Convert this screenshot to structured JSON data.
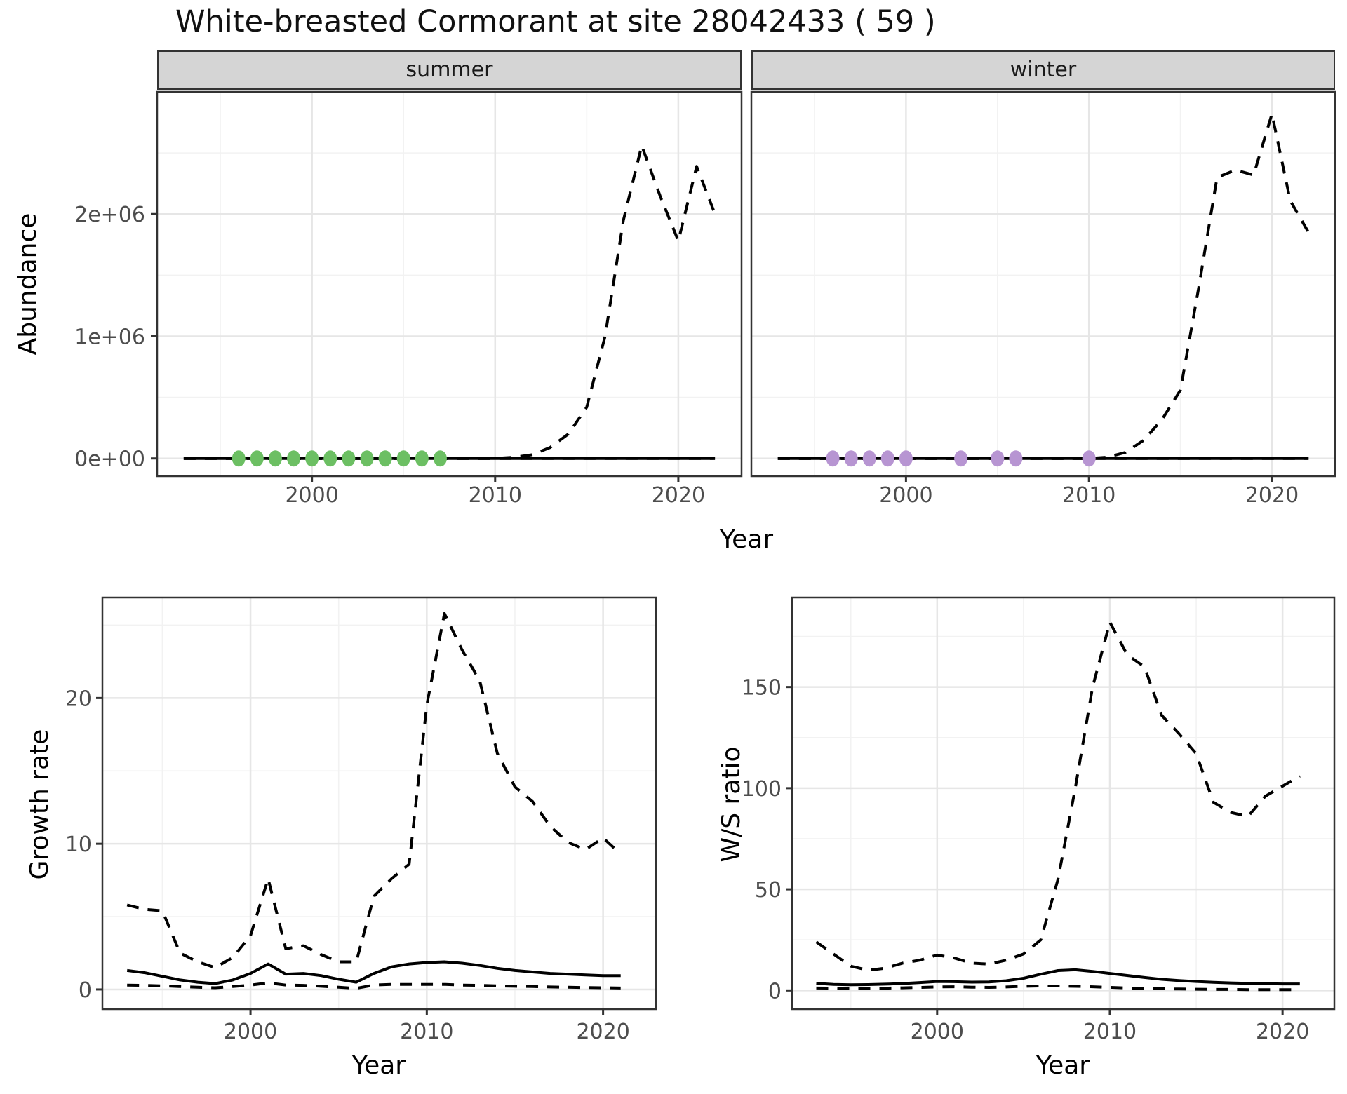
{
  "page": {
    "title": "White-breasted Cormorant at site 28042433 ( 59 )"
  },
  "colors": {
    "line": "#000000",
    "summer_points": "#6CBF63",
    "winter_points": "#B795D2",
    "grid_major": "#E6E6E6",
    "grid_minor": "#F2F2F2",
    "panel_border": "#333333",
    "strip_bg": "#D5D5D5",
    "tick_label": "#4D4D4D"
  },
  "chart_data": [
    {
      "id": "abundance_summer",
      "type": "line",
      "facet_label": "summer",
      "xlabel": "Year",
      "ylabel": "Abundance",
      "xlim": [
        1991.55,
        2023.45
      ],
      "ylim": [
        -145000,
        3000000
      ],
      "grid": true,
      "legend_position": "none",
      "xticks": {
        "values": [
          2000,
          2010,
          2020
        ],
        "labels": [
          "2000",
          "2010",
          "2020"
        ]
      },
      "xminor": [
        1995,
        2005,
        2015
      ],
      "yticks": {
        "values": [
          0,
          1000000,
          2000000
        ],
        "labels": [
          "0e+00",
          "1e+06",
          "2e+06"
        ]
      },
      "yminor": [
        500000,
        1500000,
        2500000
      ],
      "series": [
        {
          "name": "upper_ci",
          "style": "dashed",
          "color": "#000000",
          "x": [
            1993,
            2000,
            2005,
            2010,
            2011,
            2012,
            2013,
            2014,
            2015,
            2016,
            2017,
            2018,
            2019,
            2020,
            2021,
            2022
          ],
          "y": [
            0,
            0,
            0,
            0,
            10000,
            30000,
            90000,
            200000,
            420000,
            1000000,
            1950000,
            2560000,
            2150000,
            1780000,
            2390000,
            2000000
          ]
        },
        {
          "name": "estimate",
          "style": "solid",
          "color": "#000000",
          "x": [
            1993,
            2022
          ],
          "y": [
            0,
            0
          ]
        },
        {
          "name": "lower_ci",
          "style": "dashed",
          "color": "#000000",
          "x": [
            1993,
            2022
          ],
          "y": [
            0,
            0
          ]
        },
        {
          "name": "summer_counts",
          "style": "points",
          "color": "#6CBF63",
          "x": [
            1996,
            1997,
            1998,
            1999,
            2000,
            2001,
            2002,
            2003,
            2004,
            2005,
            2006,
            2007
          ],
          "y": [
            0,
            0,
            0,
            0,
            0,
            0,
            0,
            0,
            0,
            0,
            0,
            0
          ]
        }
      ]
    },
    {
      "id": "abundance_winter",
      "type": "line",
      "facet_label": "winter",
      "xlabel": "Year",
      "ylabel": "Abundance",
      "xlim": [
        1991.55,
        2023.45
      ],
      "ylim": [
        -145000,
        3000000
      ],
      "grid": true,
      "legend_position": "none",
      "xticks": {
        "values": [
          2000,
          2010,
          2020
        ],
        "labels": [
          "2000",
          "2010",
          "2020"
        ]
      },
      "xminor": [
        1995,
        2005,
        2015
      ],
      "yticks": {
        "values": [
          0,
          1000000,
          2000000
        ],
        "labels": [
          "",
          "",
          ""
        ]
      },
      "yminor": [
        500000,
        1500000,
        2500000
      ],
      "series": [
        {
          "name": "upper_ci",
          "style": "dashed",
          "color": "#000000",
          "x": [
            1993,
            2000,
            2005,
            2010,
            2011,
            2012,
            2013,
            2014,
            2015,
            2016,
            2017,
            2018,
            2019,
            2020,
            2021,
            2022
          ],
          "y": [
            0,
            0,
            0,
            0,
            10000,
            50000,
            150000,
            320000,
            560000,
            1400000,
            2300000,
            2360000,
            2320000,
            2820000,
            2110000,
            1850000
          ]
        },
        {
          "name": "estimate",
          "style": "solid",
          "color": "#000000",
          "x": [
            1993,
            2022
          ],
          "y": [
            0,
            0
          ]
        },
        {
          "name": "lower_ci",
          "style": "dashed",
          "color": "#000000",
          "x": [
            1993,
            2022
          ],
          "y": [
            0,
            0
          ]
        },
        {
          "name": "winter_counts",
          "style": "points",
          "color": "#B795D2",
          "x": [
            1996,
            1997,
            1998,
            1999,
            2000,
            2003,
            2005,
            2006,
            2010
          ],
          "y": [
            0,
            0,
            0,
            0,
            0,
            0,
            0,
            0,
            0
          ]
        }
      ]
    },
    {
      "id": "growth_rate",
      "type": "line",
      "facet_label": null,
      "xlabel": "Year",
      "ylabel": "Growth rate",
      "xlim": [
        1991.6,
        2023.0
      ],
      "ylim": [
        -1.35,
        26.9
      ],
      "grid": true,
      "legend_position": "none",
      "xticks": {
        "values": [
          2000,
          2010,
          2020
        ],
        "labels": [
          "2000",
          "2010",
          "2020"
        ]
      },
      "xminor": [
        1995,
        2005,
        2015
      ],
      "yticks": {
        "values": [
          0,
          10,
          20
        ],
        "labels": [
          "0",
          "10",
          "20"
        ]
      },
      "yminor": [
        5,
        15,
        25
      ],
      "series": [
        {
          "name": "upper_ci",
          "style": "dashed",
          "color": "#000000",
          "x": [
            1993,
            1994,
            1995,
            1996,
            1997,
            1998,
            1999,
            2000,
            2001,
            2002,
            2003,
            2004,
            2005,
            2006,
            2007,
            2008,
            2009,
            2010,
            2011,
            2012,
            2013,
            2014,
            2015,
            2016,
            2017,
            2018,
            2019,
            2020,
            2021
          ],
          "y": [
            5.8,
            5.5,
            5.4,
            2.5,
            1.9,
            1.5,
            2.2,
            3.7,
            7.6,
            2.8,
            3.0,
            2.4,
            1.9,
            1.9,
            6.4,
            7.6,
            8.6,
            19.5,
            25.8,
            23.3,
            21.2,
            16.2,
            13.9,
            12.9,
            11.2,
            10.1,
            9.6,
            10.4,
            9.3
          ]
        },
        {
          "name": "estimate",
          "style": "solid",
          "color": "#000000",
          "x": [
            1993,
            1994,
            1995,
            1996,
            1997,
            1998,
            1999,
            2000,
            2001,
            2002,
            2003,
            2004,
            2005,
            2006,
            2007,
            2008,
            2009,
            2010,
            2011,
            2012,
            2013,
            2014,
            2015,
            2016,
            2017,
            2018,
            2019,
            2020,
            2021
          ],
          "y": [
            1.3,
            1.15,
            0.9,
            0.65,
            0.5,
            0.4,
            0.65,
            1.1,
            1.75,
            1.05,
            1.1,
            0.95,
            0.7,
            0.5,
            1.1,
            1.55,
            1.75,
            1.85,
            1.9,
            1.8,
            1.65,
            1.45,
            1.3,
            1.2,
            1.1,
            1.05,
            1.0,
            0.95,
            0.95
          ]
        },
        {
          "name": "lower_ci",
          "style": "dashed",
          "color": "#000000",
          "x": [
            1993,
            1994,
            1995,
            1996,
            1997,
            1998,
            1999,
            2000,
            2001,
            2002,
            2003,
            2004,
            2005,
            2006,
            2007,
            2008,
            2009,
            2010,
            2011,
            2012,
            2013,
            2014,
            2015,
            2016,
            2017,
            2018,
            2019,
            2020,
            2021
          ],
          "y": [
            0.3,
            0.28,
            0.25,
            0.2,
            0.15,
            0.12,
            0.2,
            0.3,
            0.45,
            0.3,
            0.28,
            0.22,
            0.15,
            0.08,
            0.3,
            0.35,
            0.35,
            0.35,
            0.35,
            0.3,
            0.28,
            0.25,
            0.22,
            0.2,
            0.17,
            0.15,
            0.13,
            0.12,
            0.1
          ]
        }
      ]
    },
    {
      "id": "ws_ratio",
      "type": "line",
      "facet_label": null,
      "xlabel": "Year",
      "ylabel": "W/S ratio",
      "xlim": [
        1991.6,
        2023.0
      ],
      "ylim": [
        -9.25,
        194.25
      ],
      "grid": true,
      "legend_position": "none",
      "xticks": {
        "values": [
          2000,
          2010,
          2020
        ],
        "labels": [
          "2000",
          "2010",
          "2020"
        ]
      },
      "xminor": [
        1995,
        2005,
        2015
      ],
      "yticks": {
        "values": [
          0,
          50,
          100,
          150
        ],
        "labels": [
          "0",
          "50",
          "100",
          "150"
        ]
      },
      "yminor": [
        25,
        75,
        125,
        175
      ],
      "series": [
        {
          "name": "upper_ci",
          "style": "dashed",
          "color": "#000000",
          "x": [
            1993,
            1994,
            1995,
            1996,
            1997,
            1998,
            1999,
            2000,
            2001,
            2002,
            2003,
            2004,
            2005,
            2006,
            2007,
            2008,
            2009,
            2010,
            2011,
            2012,
            2013,
            2014,
            2015,
            2016,
            2017,
            2018,
            2019,
            2020,
            2021
          ],
          "y": [
            24,
            18,
            12,
            10,
            11,
            13.5,
            15,
            17.5,
            16,
            13.5,
            13,
            15,
            18,
            25,
            55,
            100,
            150,
            182,
            166,
            160,
            136,
            127,
            117,
            93,
            88,
            86,
            96,
            101,
            106
          ]
        },
        {
          "name": "estimate",
          "style": "solid",
          "color": "#000000",
          "x": [
            1993,
            1994,
            1995,
            1996,
            1997,
            1998,
            1999,
            2000,
            2001,
            2002,
            2003,
            2004,
            2005,
            2006,
            2007,
            2008,
            2009,
            2010,
            2011,
            2012,
            2013,
            2014,
            2015,
            2016,
            2017,
            2018,
            2019,
            2020,
            2021
          ],
          "y": [
            3.5,
            3.0,
            2.8,
            2.9,
            3.1,
            3.4,
            3.9,
            4.4,
            4.3,
            4.1,
            4.2,
            4.8,
            6.0,
            8.0,
            9.8,
            10.2,
            9.4,
            8.4,
            7.4,
            6.4,
            5.5,
            4.9,
            4.4,
            4.0,
            3.7,
            3.5,
            3.3,
            3.2,
            3.2
          ]
        },
        {
          "name": "lower_ci",
          "style": "dashed",
          "color": "#000000",
          "x": [
            1993,
            1994,
            1995,
            1996,
            1997,
            1998,
            1999,
            2000,
            2001,
            2002,
            2003,
            2004,
            2005,
            2006,
            2007,
            2008,
            2009,
            2010,
            2011,
            2012,
            2013,
            2014,
            2015,
            2016,
            2017,
            2018,
            2019,
            2020,
            2021
          ],
          "y": [
            1.2,
            1.1,
            1.0,
            1.0,
            1.1,
            1.3,
            1.5,
            1.7,
            1.8,
            1.6,
            1.5,
            1.7,
            2.0,
            2.2,
            2.2,
            2.0,
            1.8,
            1.5,
            1.2,
            1.0,
            0.8,
            0.7,
            0.6,
            0.5,
            0.5,
            0.4,
            0.4,
            0.4,
            0.4
          ]
        }
      ]
    }
  ]
}
